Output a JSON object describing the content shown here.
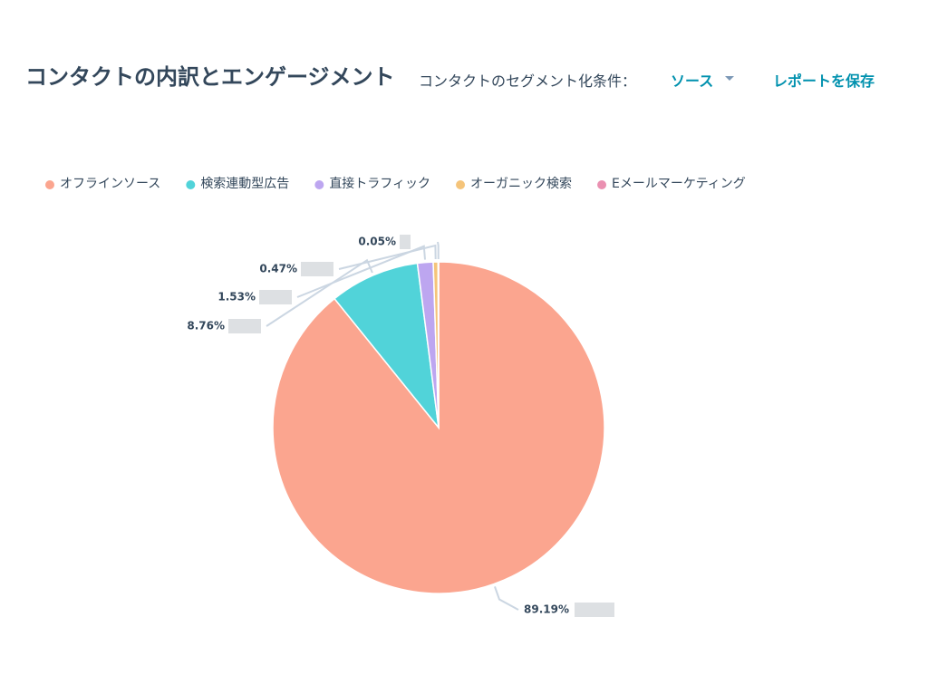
{
  "header": {
    "segment_label": "コンタクトのセグメント化条件：",
    "segment_value": "ソース",
    "save_button": "レポートを保存"
  },
  "chart_data": {
    "type": "pie",
    "title": "コンタクトの内訳とエンゲージメント",
    "categories": [
      "オフラインソース",
      "検索連動型広告",
      "直接トラフィック",
      "オーガニック検索",
      "Eメールマーケティング"
    ],
    "values": [
      89.19,
      8.76,
      1.53,
      0.47,
      0.05
    ],
    "value_labels": [
      "89.19%",
      "8.76%",
      "1.53%",
      "0.47%",
      "0.05%"
    ],
    "colors": [
      "#fba58f",
      "#51d3d9",
      "#bda6f0",
      "#f5c47a",
      "#ea90b1"
    ]
  }
}
